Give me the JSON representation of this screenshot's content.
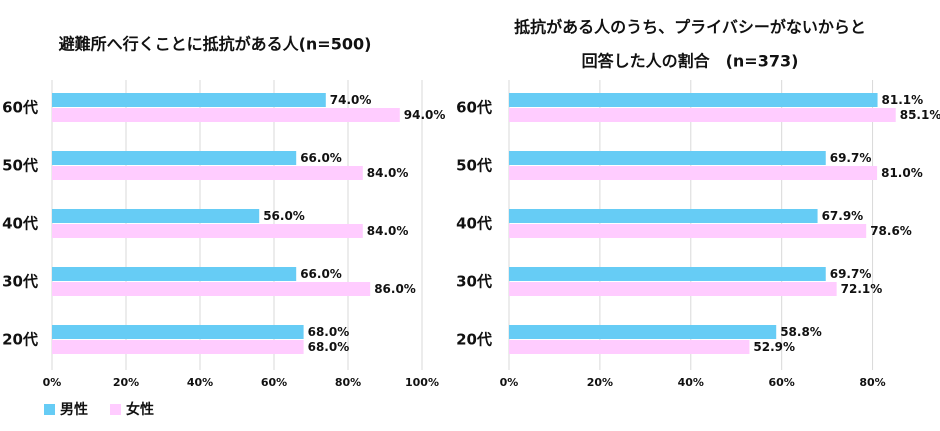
{
  "chart_data": [
    {
      "type": "bar",
      "orientation": "horizontal",
      "title": [
        "避難所へ行くことに抵抗がある人(n=500)"
      ],
      "categories": [
        "60代",
        "50代",
        "40代",
        "30代",
        "20代"
      ],
      "series": [
        {
          "name": "男性",
          "color": "#66ccf5",
          "values": [
            74,
            66,
            56,
            66,
            68
          ],
          "value_labels": [
            "74.0%",
            "66.0%",
            "56.0%",
            "66.0%",
            "68.0%"
          ]
        },
        {
          "name": "女性",
          "color": "#ffccff",
          "values": [
            94,
            84,
            84,
            86,
            68
          ],
          "value_labels": [
            "94.0%",
            "84.0%",
            "84.0%",
            "86.0%",
            "68.0%"
          ]
        }
      ],
      "xlim": [
        0,
        100
      ],
      "xticks": [
        {
          "value": 0,
          "label": "0%"
        },
        {
          "value": 20,
          "label": "20%"
        },
        {
          "value": 40,
          "label": "40%"
        },
        {
          "value": 60,
          "label": "60%"
        },
        {
          "value": 80,
          "label": "80%"
        },
        {
          "value": 100,
          "label": "100%"
        }
      ],
      "grid": true,
      "legend": "bottom-left"
    },
    {
      "type": "bar",
      "orientation": "horizontal",
      "title": [
        "抵抗がある人のうち、プライバシーがないからと",
        "回答した人の割合　(n=373)"
      ],
      "categories": [
        "60代",
        "50代",
        "40代",
        "30代",
        "20代"
      ],
      "series": [
        {
          "color": "#66ccf5",
          "values": [
            81.1,
            69.7,
            67.9,
            69.7,
            58.8
          ],
          "value_labels": [
            "81.1%",
            "69.7%",
            "67.9%",
            "69.7%",
            "58.8%"
          ]
        },
        {
          "color": "#ffccff",
          "values": [
            85.1,
            81.0,
            78.6,
            72.1,
            52.9
          ],
          "value_labels": [
            "85.1%",
            "81.0%",
            "78.6%",
            "72.1%",
            "52.9%"
          ]
        }
      ],
      "xlim": [
        0,
        90
      ],
      "xticks": [
        {
          "value": 0,
          "label": "0%"
        },
        {
          "value": 20,
          "label": "20%"
        },
        {
          "value": 40,
          "label": "40%"
        },
        {
          "value": 60,
          "label": "60%"
        },
        {
          "value": 80,
          "label": "80%"
        }
      ],
      "grid": true
    }
  ]
}
